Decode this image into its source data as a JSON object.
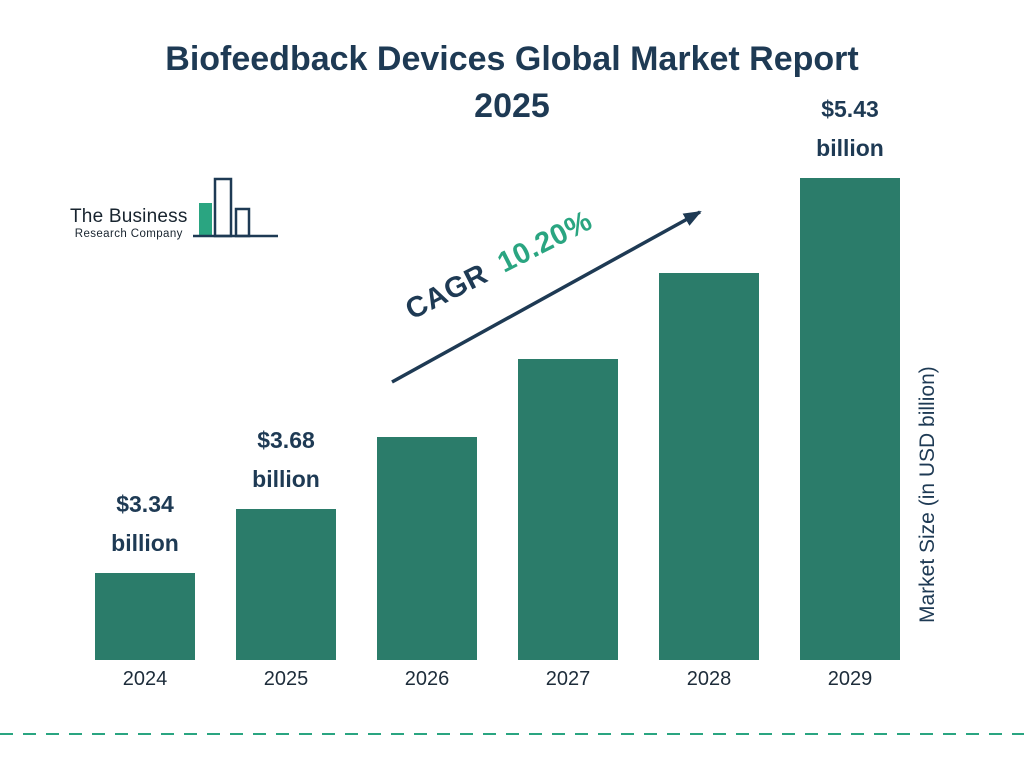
{
  "title_line1": "Biofeedback Devices Global Market Report",
  "title_line2": "2025",
  "logo": {
    "line1": "The Business",
    "line2": "Research Company"
  },
  "cagr": {
    "prefix": "CAGR",
    "value": "10.20%"
  },
  "y_axis_label": "Market Size (in USD billion)",
  "chart_data": {
    "type": "bar",
    "title": "Biofeedback Devices Global Market Report 2025",
    "categories": [
      "2024",
      "2025",
      "2026",
      "2027",
      "2028",
      "2029"
    ],
    "values": [
      3.34,
      3.68,
      4.06,
      4.47,
      4.93,
      5.43
    ],
    "value_labels": [
      "$3.34 billion",
      "$3.68 billion",
      "",
      "",
      "",
      "$5.43 billion"
    ],
    "unit": "USD billion",
    "xlabel": "",
    "ylabel": "Market Size (in USD billion)",
    "cagr": "10.20%",
    "baseline_value": 2.88,
    "max_value": 5.43,
    "grid": false,
    "legend": false,
    "colors": {
      "bar": "#2b7c6a",
      "navy": "#1e3a54",
      "accent_green": "#2aa581"
    }
  }
}
